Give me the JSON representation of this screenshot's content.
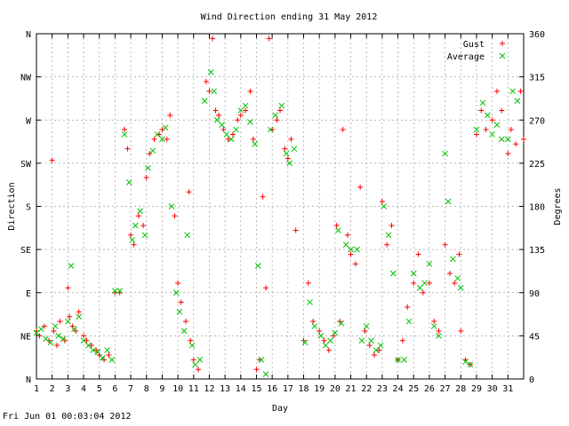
{
  "footer": {
    "timestamp": "Fri Jun 01 00:03:04 2012"
  },
  "chart_data": {
    "type": "scatter",
    "title": "Wind Direction ending 31 May 2012",
    "xlabel": "Day",
    "ylabel": "Direction",
    "y2label": "Degrees",
    "xlim": [
      1,
      32
    ],
    "ylim": [
      0,
      360
    ],
    "grid": true,
    "legend_position": "top-right",
    "x_ticks": [
      "1",
      "2",
      "3",
      "4",
      "5",
      "6",
      "7",
      "8",
      "9",
      "10",
      "11",
      "12",
      "13",
      "14",
      "15",
      "16",
      "17",
      "18",
      "19",
      "20",
      "21",
      "22",
      "23",
      "24",
      "25",
      "26",
      "27",
      "28",
      "29",
      "30",
      "31"
    ],
    "y_ticks_left": [
      {
        "value": 0,
        "label": "N"
      },
      {
        "value": 45,
        "label": "NE"
      },
      {
        "value": 90,
        "label": "E"
      },
      {
        "value": 135,
        "label": "SE"
      },
      {
        "value": 180,
        "label": "S"
      },
      {
        "value": 225,
        "label": "SW"
      },
      {
        "value": 270,
        "label": "W"
      },
      {
        "value": 315,
        "label": "NW"
      },
      {
        "value": 360,
        "label": "N"
      }
    ],
    "y_ticks_right": [
      {
        "value": 0,
        "label": "0"
      },
      {
        "value": 45,
        "label": "45"
      },
      {
        "value": 90,
        "label": "90"
      },
      {
        "value": 135,
        "label": "135"
      },
      {
        "value": 180,
        "label": "180"
      },
      {
        "value": 225,
        "label": "225"
      },
      {
        "value": 270,
        "label": "270"
      },
      {
        "value": 315,
        "label": "315"
      },
      {
        "value": 360,
        "label": "360"
      }
    ],
    "series": [
      {
        "name": "Gust",
        "marker": "plus",
        "color": "#ff0000",
        "points": [
          [
            1.0,
            50
          ],
          [
            1.2,
            45
          ],
          [
            1.5,
            55
          ],
          [
            1.8,
            40
          ],
          [
            2.0,
            228
          ],
          [
            2.1,
            50
          ],
          [
            2.3,
            35
          ],
          [
            2.5,
            60
          ],
          [
            2.8,
            40
          ],
          [
            3.0,
            95
          ],
          [
            3.1,
            65
          ],
          [
            3.3,
            55
          ],
          [
            3.5,
            50
          ],
          [
            3.7,
            70
          ],
          [
            4.0,
            45
          ],
          [
            4.2,
            40
          ],
          [
            4.5,
            35
          ],
          [
            4.8,
            30
          ],
          [
            5.0,
            25
          ],
          [
            5.3,
            20
          ],
          [
            5.6,
            25
          ],
          [
            6.0,
            90
          ],
          [
            6.3,
            90
          ],
          [
            6.6,
            260
          ],
          [
            6.8,
            240
          ],
          [
            7.0,
            150
          ],
          [
            7.2,
            140
          ],
          [
            7.5,
            170
          ],
          [
            7.8,
            160
          ],
          [
            8.0,
            210
          ],
          [
            8.2,
            235
          ],
          [
            8.5,
            250
          ],
          [
            8.8,
            255
          ],
          [
            9.0,
            260
          ],
          [
            9.3,
            250
          ],
          [
            9.5,
            275
          ],
          [
            9.8,
            170
          ],
          [
            10.0,
            100
          ],
          [
            10.2,
            80
          ],
          [
            10.5,
            60
          ],
          [
            10.7,
            195
          ],
          [
            10.8,
            40
          ],
          [
            11.0,
            20
          ],
          [
            11.3,
            10
          ],
          [
            11.8,
            310
          ],
          [
            12.0,
            300
          ],
          [
            12.2,
            355
          ],
          [
            12.4,
            280
          ],
          [
            12.6,
            275
          ],
          [
            12.9,
            260
          ],
          [
            13.2,
            250
          ],
          [
            13.5,
            255
          ],
          [
            13.8,
            270
          ],
          [
            14.0,
            275
          ],
          [
            14.3,
            280
          ],
          [
            14.6,
            300
          ],
          [
            14.8,
            250
          ],
          [
            15.0,
            10
          ],
          [
            15.2,
            20
          ],
          [
            15.4,
            190
          ],
          [
            15.6,
            95
          ],
          [
            15.8,
            355
          ],
          [
            16.0,
            260
          ],
          [
            16.3,
            270
          ],
          [
            16.5,
            280
          ],
          [
            16.8,
            240
          ],
          [
            17.0,
            230
          ],
          [
            17.2,
            250
          ],
          [
            17.5,
            155
          ],
          [
            18.0,
            40
          ],
          [
            18.3,
            100
          ],
          [
            18.6,
            60
          ],
          [
            19.0,
            50
          ],
          [
            19.3,
            40
          ],
          [
            19.6,
            30
          ],
          [
            19.9,
            45
          ],
          [
            20.1,
            160
          ],
          [
            20.3,
            60
          ],
          [
            20.5,
            260
          ],
          [
            20.8,
            150
          ],
          [
            21.0,
            130
          ],
          [
            21.3,
            120
          ],
          [
            21.6,
            200
          ],
          [
            21.9,
            50
          ],
          [
            22.2,
            35
          ],
          [
            22.5,
            25
          ],
          [
            22.8,
            30
          ],
          [
            23.0,
            185
          ],
          [
            23.3,
            140
          ],
          [
            23.6,
            160
          ],
          [
            24.0,
            20
          ],
          [
            24.3,
            40
          ],
          [
            24.6,
            75
          ],
          [
            25.0,
            100
          ],
          [
            25.3,
            130
          ],
          [
            25.6,
            90
          ],
          [
            26.0,
            100
          ],
          [
            26.3,
            60
          ],
          [
            26.6,
            50
          ],
          [
            27.0,
            140
          ],
          [
            27.3,
            110
          ],
          [
            27.6,
            100
          ],
          [
            27.9,
            130
          ],
          [
            28.0,
            50
          ],
          [
            28.3,
            20
          ],
          [
            28.6,
            15
          ],
          [
            29.0,
            255
          ],
          [
            29.3,
            280
          ],
          [
            29.6,
            260
          ],
          [
            30.0,
            270
          ],
          [
            30.3,
            300
          ],
          [
            30.6,
            280
          ],
          [
            31.0,
            235
          ],
          [
            31.2,
            260
          ],
          [
            31.5,
            245
          ],
          [
            31.8,
            300
          ],
          [
            32.0,
            250
          ]
        ]
      },
      {
        "name": "Average",
        "marker": "x",
        "color": "#00c000",
        "points": [
          [
            1.0,
            48
          ],
          [
            1.3,
            52
          ],
          [
            1.6,
            42
          ],
          [
            1.9,
            38
          ],
          [
            2.2,
            55
          ],
          [
            2.4,
            45
          ],
          [
            2.7,
            42
          ],
          [
            3.0,
            60
          ],
          [
            3.2,
            118
          ],
          [
            3.4,
            52
          ],
          [
            3.7,
            65
          ],
          [
            4.0,
            40
          ],
          [
            4.3,
            35
          ],
          [
            4.6,
            30
          ],
          [
            4.9,
            28
          ],
          [
            5.2,
            22
          ],
          [
            5.5,
            30
          ],
          [
            5.8,
            20
          ],
          [
            6.0,
            92
          ],
          [
            6.3,
            92
          ],
          [
            6.6,
            255
          ],
          [
            6.9,
            205
          ],
          [
            7.1,
            145
          ],
          [
            7.3,
            160
          ],
          [
            7.6,
            175
          ],
          [
            7.9,
            150
          ],
          [
            8.1,
            220
          ],
          [
            8.4,
            238
          ],
          [
            8.7,
            255
          ],
          [
            9.0,
            250
          ],
          [
            9.2,
            262
          ],
          [
            9.6,
            180
          ],
          [
            9.9,
            90
          ],
          [
            10.1,
            70
          ],
          [
            10.4,
            50
          ],
          [
            10.6,
            150
          ],
          [
            10.9,
            35
          ],
          [
            11.1,
            15
          ],
          [
            11.4,
            20
          ],
          [
            11.7,
            290
          ],
          [
            12.1,
            320
          ],
          [
            12.3,
            300
          ],
          [
            12.5,
            270
          ],
          [
            12.8,
            265
          ],
          [
            13.1,
            255
          ],
          [
            13.4,
            250
          ],
          [
            13.7,
            260
          ],
          [
            14.0,
            280
          ],
          [
            14.3,
            285
          ],
          [
            14.6,
            268
          ],
          [
            14.9,
            245
          ],
          [
            15.1,
            118
          ],
          [
            15.3,
            20
          ],
          [
            15.6,
            5
          ],
          [
            15.9,
            260
          ],
          [
            16.2,
            275
          ],
          [
            16.6,
            285
          ],
          [
            16.9,
            235
          ],
          [
            17.1,
            225
          ],
          [
            17.4,
            240
          ],
          [
            18.1,
            38
          ],
          [
            18.4,
            80
          ],
          [
            18.7,
            55
          ],
          [
            19.1,
            45
          ],
          [
            19.4,
            35
          ],
          [
            19.7,
            40
          ],
          [
            20.0,
            48
          ],
          [
            20.2,
            155
          ],
          [
            20.4,
            58
          ],
          [
            20.7,
            140
          ],
          [
            21.0,
            135
          ],
          [
            21.4,
            135
          ],
          [
            21.7,
            40
          ],
          [
            22.0,
            55
          ],
          [
            22.3,
            40
          ],
          [
            22.6,
            30
          ],
          [
            22.9,
            35
          ],
          [
            23.1,
            180
          ],
          [
            23.4,
            150
          ],
          [
            23.7,
            110
          ],
          [
            24.0,
            20
          ],
          [
            24.4,
            20
          ],
          [
            24.7,
            60
          ],
          [
            25.0,
            110
          ],
          [
            25.4,
            95
          ],
          [
            25.7,
            100
          ],
          [
            26.0,
            120
          ],
          [
            26.3,
            55
          ],
          [
            26.6,
            45
          ],
          [
            27.0,
            235
          ],
          [
            27.2,
            185
          ],
          [
            27.5,
            125
          ],
          [
            27.8,
            105
          ],
          [
            28.0,
            95
          ],
          [
            28.3,
            18
          ],
          [
            28.6,
            15
          ],
          [
            29.0,
            260
          ],
          [
            29.4,
            288
          ],
          [
            29.7,
            275
          ],
          [
            30.0,
            255
          ],
          [
            30.3,
            265
          ],
          [
            30.6,
            250
          ],
          [
            31.0,
            250
          ],
          [
            31.3,
            300
          ],
          [
            31.6,
            290
          ]
        ]
      }
    ]
  }
}
